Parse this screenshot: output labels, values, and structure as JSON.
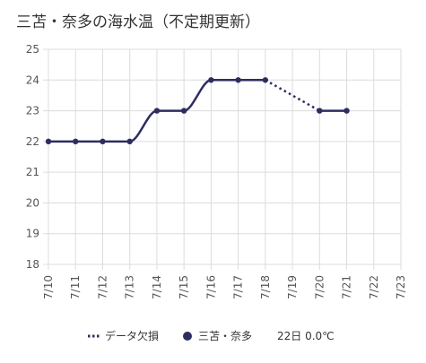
{
  "chart_data": {
    "type": "line",
    "title": "三苫・奈多の海水温（不定期更新）",
    "x": [
      "7/10",
      "7/11",
      "7/12",
      "7/13",
      "7/14",
      "7/15",
      "7/16",
      "7/17",
      "7/18",
      "7/19",
      "7/20",
      "7/21",
      "7/22",
      "7/23"
    ],
    "ylim": [
      18,
      25
    ],
    "yticks": [
      18,
      19,
      20,
      21,
      22,
      23,
      24,
      25
    ],
    "grid": true,
    "legend_position": "bottom",
    "series": [
      {
        "name": "三苫・奈多",
        "values": [
          22,
          22,
          22,
          22,
          23,
          23,
          24,
          24,
          24,
          null,
          23,
          23,
          null,
          null
        ],
        "color": "#2e2d62"
      }
    ],
    "missing_data_segments": [
      {
        "from": "7/18",
        "to": "7/20"
      }
    ],
    "legend": {
      "missing_label": "データ欠損",
      "series_label": "三苫・奈多",
      "series_extra": "22日 0.0℃"
    }
  }
}
